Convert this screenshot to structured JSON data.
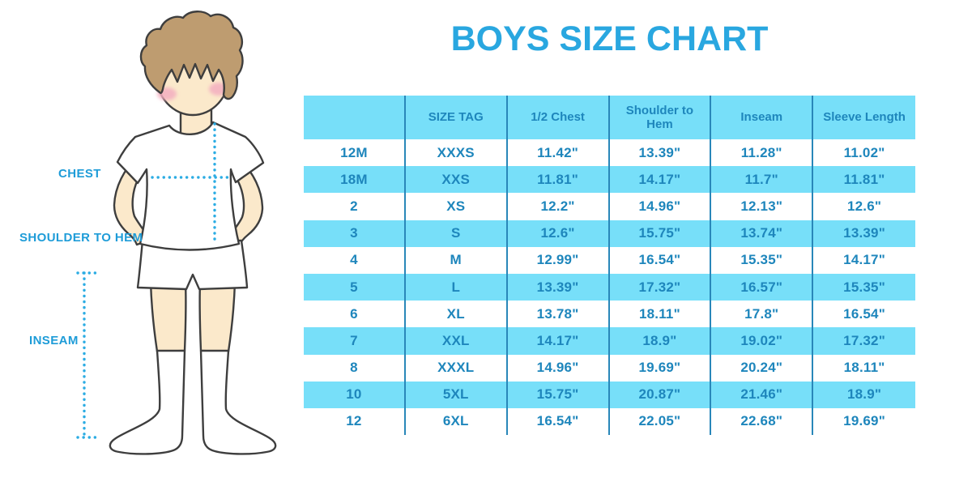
{
  "page": {
    "title": "BOYS SIZE CHART"
  },
  "figure": {
    "labels": {
      "chest": "CHEST",
      "shoulder_to_hem": "SHOULDER TO HEM",
      "inseam": "INSEAM"
    }
  },
  "chart_data": {
    "type": "table",
    "title": "BOYS SIZE CHART",
    "columns": [
      "",
      "SIZE TAG",
      "1/2 Chest",
      "Shoulder to Hem",
      "Inseam",
      "Sleeve Length"
    ],
    "rows": [
      [
        "12M",
        "XXXS",
        "11.42\"",
        "13.39\"",
        "11.28\"",
        "11.02\""
      ],
      [
        "18M",
        "XXS",
        "11.81\"",
        "14.17\"",
        "11.7\"",
        "11.81\""
      ],
      [
        "2",
        "XS",
        "12.2\"",
        "14.96\"",
        "12.13\"",
        "12.6\""
      ],
      [
        "3",
        "S",
        "12.6\"",
        "15.75\"",
        "13.74\"",
        "13.39\""
      ],
      [
        "4",
        "M",
        "12.99\"",
        "16.54\"",
        "15.35\"",
        "14.17\""
      ],
      [
        "5",
        "L",
        "13.39\"",
        "17.32\"",
        "16.57\"",
        "15.35\""
      ],
      [
        "6",
        "XL",
        "13.78\"",
        "18.11\"",
        "17.8\"",
        "16.54\""
      ],
      [
        "7",
        "XXL",
        "14.17\"",
        "18.9\"",
        "19.02\"",
        "17.32\""
      ],
      [
        "8",
        "XXXL",
        "14.96\"",
        "19.69\"",
        "20.24\"",
        "18.11\""
      ],
      [
        "10",
        "5XL",
        "15.75\"",
        "20.87\"",
        "21.46\"",
        "18.9\""
      ],
      [
        "12",
        "6XL",
        "16.54\"",
        "22.05\"",
        "22.68\"",
        "19.69\""
      ]
    ],
    "row_stripe_pattern": [
      "white",
      "cyan"
    ],
    "units": "inches",
    "legend_position": "none",
    "grid": "vertical-separators-only"
  },
  "colors": {
    "accent_blue": "#29A7E0",
    "label_blue": "#1E9CD8",
    "cell_cyan": "#77DFF9",
    "table_text": "#1E86BC",
    "column_border": "#2987B9",
    "dotted_line": "#2BACE3",
    "skin": "#FBE9CB",
    "hair": "#BE9C70",
    "blush": "#F3AEC0",
    "outline": "#3E3E3E"
  }
}
